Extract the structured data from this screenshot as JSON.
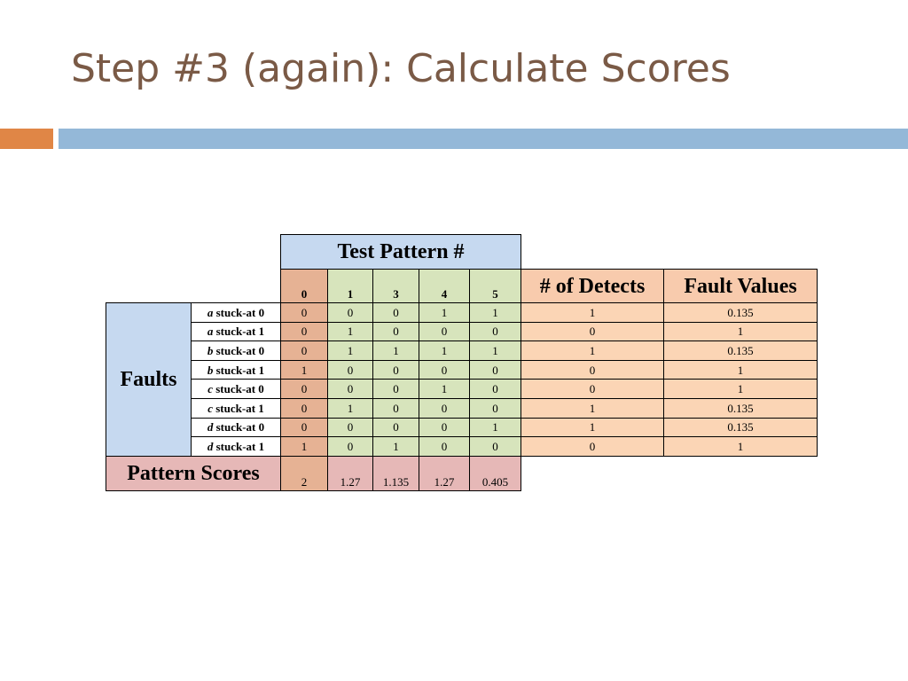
{
  "slide": {
    "title": "Step #3 (again): Calculate Scores"
  },
  "table": {
    "test_pattern_header": "Test Pattern #",
    "patterns": [
      "0",
      "1",
      "3",
      "4",
      "5"
    ],
    "detects_header": "# of Detects",
    "fault_values_header": "Fault Values",
    "faults_label": "Faults",
    "rows": [
      {
        "signal": "a",
        "fault": " stuck-at 0",
        "values": [
          "0",
          "0",
          "0",
          "1",
          "1"
        ],
        "detects": "1",
        "fault_value": "0.135"
      },
      {
        "signal": "a",
        "fault": " stuck-at 1",
        "values": [
          "0",
          "1",
          "0",
          "0",
          "0"
        ],
        "detects": "0",
        "fault_value": "1"
      },
      {
        "signal": "b",
        "fault": " stuck-at 0",
        "values": [
          "0",
          "1",
          "1",
          "1",
          "1"
        ],
        "detects": "1",
        "fault_value": "0.135"
      },
      {
        "signal": "b",
        "fault": " stuck-at 1",
        "values": [
          "1",
          "0",
          "0",
          "0",
          "0"
        ],
        "detects": "0",
        "fault_value": "1"
      },
      {
        "signal": "c",
        "fault": " stuck-at 0",
        "values": [
          "0",
          "0",
          "0",
          "1",
          "0"
        ],
        "detects": "0",
        "fault_value": "1"
      },
      {
        "signal": "c",
        "fault": " stuck-at 1",
        "values": [
          "0",
          "1",
          "0",
          "0",
          "0"
        ],
        "detects": "1",
        "fault_value": "0.135"
      },
      {
        "signal": "d",
        "fault": " stuck-at 0",
        "values": [
          "0",
          "0",
          "0",
          "0",
          "1"
        ],
        "detects": "1",
        "fault_value": "0.135"
      },
      {
        "signal": "d",
        "fault": " stuck-at 1",
        "values": [
          "1",
          "0",
          "1",
          "0",
          "0"
        ],
        "detects": "0",
        "fault_value": "1"
      }
    ],
    "pattern_scores_label": "Pattern Scores",
    "pattern_scores": [
      "2",
      "1.27",
      "1.135",
      "1.27",
      "0.405"
    ]
  },
  "colors": {
    "title": "#7a5a46",
    "accent_orange": "#e08646",
    "accent_blue": "#94b8d8",
    "header_blue": "#c6d9f0",
    "pattern0_orange": "#e6b294",
    "pattern_green": "#d7e4bc",
    "detects_peach": "#fbd5b5",
    "scores_pink": "#e6b8b7"
  }
}
